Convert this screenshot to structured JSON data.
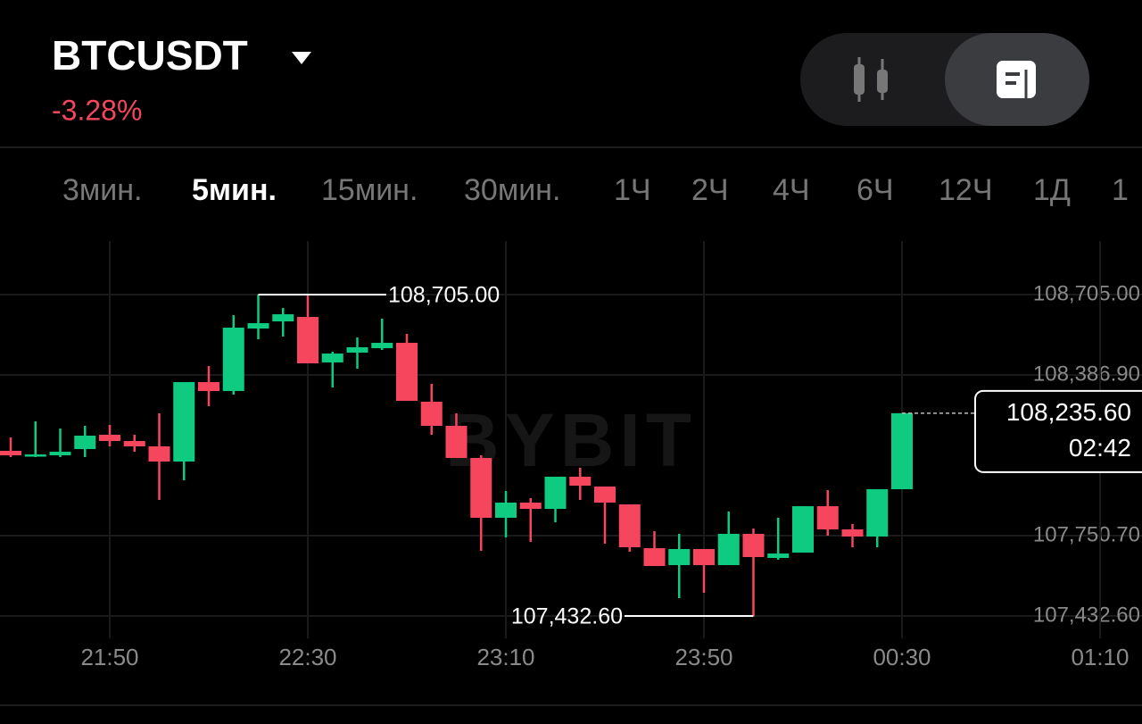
{
  "header": {
    "symbol": "BTCUSDT",
    "change": "-3.28%"
  },
  "timeframes": {
    "items": [
      "3мин.",
      "5мин.",
      "15мин.",
      "30мин.",
      "1Ч",
      "2Ч",
      "4Ч",
      "6Ч",
      "12Ч",
      "1Д",
      "1"
    ],
    "active": 1
  },
  "chart_data": {
    "type": "candlestick",
    "watermark": "BYBIT",
    "up_color": "#0ecb81",
    "down_color": "#f6465d",
    "grid": true,
    "categories": [
      null,
      null,
      null,
      null,
      "21:50",
      null,
      null,
      null,
      null,
      null,
      null,
      null,
      "22:30",
      null,
      null,
      null,
      null,
      null,
      null,
      null,
      "23:10",
      null,
      null,
      null,
      null,
      null,
      null,
      null,
      "23:50",
      null,
      null,
      null,
      null,
      null,
      null,
      null,
      "00:30",
      null,
      null,
      null,
      null,
      null,
      null,
      null,
      "01:10"
    ],
    "open": [
      108086.5,
      108065.3,
      108068.8,
      108093.5,
      108150.1,
      108125.4,
      108104.2,
      108044.1,
      108358.6,
      108323.3,
      108570.7,
      108599.0,
      108616.6,
      108436.4,
      108475.3,
      108492.9,
      108514.1,
      108280.9,
      108185.4,
      108058.2,
      107821.4,
      107881.5,
      107856.7,
      107984.0,
      107945.1,
      107874.4,
      107701.2,
      107634.1,
      107697.7,
      107634.1,
      107757.8,
      107662.4,
      107683.6,
      107867.3,
      107775.5,
      107747.2,
      107934.5,
      null,
      null,
      null,
      null,
      null,
      null,
      null,
      null
    ],
    "high": [
      108139.5,
      108203.1,
      108174.8,
      108185.4,
      108189.0,
      108150.1,
      108234.9,
      108358.6,
      108422.2,
      108623.7,
      108705.0,
      108652.0,
      108705.0,
      108478.8,
      108535.3,
      108609.6,
      108549.5,
      108351.6,
      108234.9,
      108068.8,
      107927.4,
      107899.2,
      107984.0,
      108019.3,
      107945.1,
      107874.4,
      107768.4,
      107757.8,
      107697.7,
      107846.1,
      107779.0,
      107821.4,
      107867.3,
      107931.0,
      107796.7,
      107934.5,
      108235.6,
      null,
      null,
      null,
      null,
      null,
      null,
      null,
      null
    ],
    "low": [
      108061.7,
      108061.7,
      108061.7,
      108061.7,
      108104.2,
      108082.9,
      107892.1,
      107969.8,
      108263.2,
      108309.1,
      108528.3,
      108538.9,
      108432.9,
      108337.4,
      108411.6,
      108485.9,
      108284.4,
      108150.1,
      108058.2,
      107690.6,
      107743.6,
      107726.0,
      107803.7,
      107892.1,
      107718.9,
      107687.1,
      107630.5,
      107503.3,
      107524.5,
      107634.1,
      107432.6,
      107655.3,
      107683.6,
      107750.7,
      107704.8,
      107704.8,
      107934.5,
      null,
      null,
      null,
      null,
      null,
      null,
      null,
      null
    ],
    "close": [
      108068.8,
      108072.3,
      108082.9,
      108146.6,
      108125.4,
      108104.2,
      108044.1,
      108358.6,
      108323.3,
      108574.2,
      108591.9,
      108627.2,
      108432.9,
      108471.7,
      108496.5,
      108514.1,
      108284.4,
      108185.4,
      108058.2,
      107821.4,
      107881.5,
      107856.7,
      107984.0,
      107948.6,
      107881.5,
      107704.8,
      107630.5,
      107697.7,
      107634.1,
      107757.8,
      107665.9,
      107680.0,
      107867.3,
      107775.5,
      107747.2,
      107934.5,
      108235.6,
      null,
      null,
      null,
      null,
      null,
      null,
      null,
      null
    ],
    "ylim": [
      107344.3,
      108917.1
    ],
    "yticks": [
      {
        "value": 108705.0,
        "label": "108,705.00"
      },
      {
        "value": 108386.9,
        "label": "108,386.90"
      },
      {
        "value": 107750.7,
        "label": "107,750.70"
      },
      {
        "value": 107432.6,
        "label": "107,432.60"
      }
    ],
    "high_marker": {
      "value": 108705.0,
      "label": "108,705.00"
    },
    "low_marker": {
      "value": 107432.6,
      "label": "107,432.60"
    },
    "last_price": {
      "value": 108235.6,
      "label": "108,235.60"
    },
    "countdown": "02:42"
  }
}
